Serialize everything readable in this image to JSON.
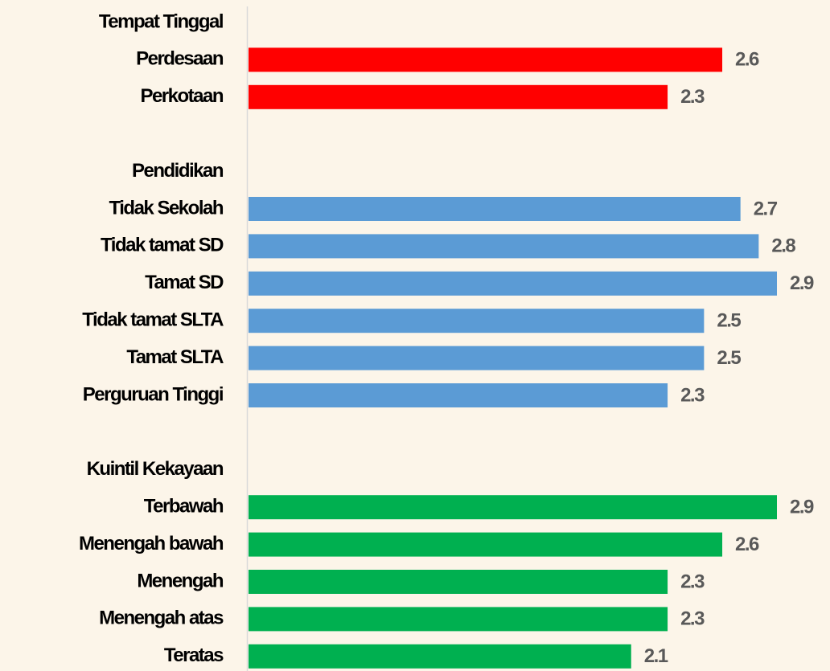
{
  "chart_data": {
    "type": "bar",
    "orientation": "horizontal",
    "groups": [
      {
        "name": "Tempat Tinggal",
        "color": "#ff0000",
        "categories": [
          "Perdesaan",
          "Perkotaan"
        ],
        "values": [
          2.6,
          2.3
        ]
      },
      {
        "name": "Pendidikan",
        "color": "#5b9bd5",
        "categories": [
          "Tidak Sekolah",
          "Tidak tamat SD",
          "Tamat SD",
          "Tidak tamat SLTA",
          "Tamat SLTA",
          "Perguruan Tinggi"
        ],
        "values": [
          2.7,
          2.8,
          2.9,
          2.5,
          2.5,
          2.3
        ]
      },
      {
        "name": "Kuintil Kekayaan",
        "color": "#00b050",
        "categories": [
          "Terbawah",
          "Menengah bawah",
          "Menengah",
          "Menengah atas",
          "Teratas"
        ],
        "values": [
          2.9,
          2.6,
          2.3,
          2.3,
          2.1
        ]
      }
    ]
  }
}
